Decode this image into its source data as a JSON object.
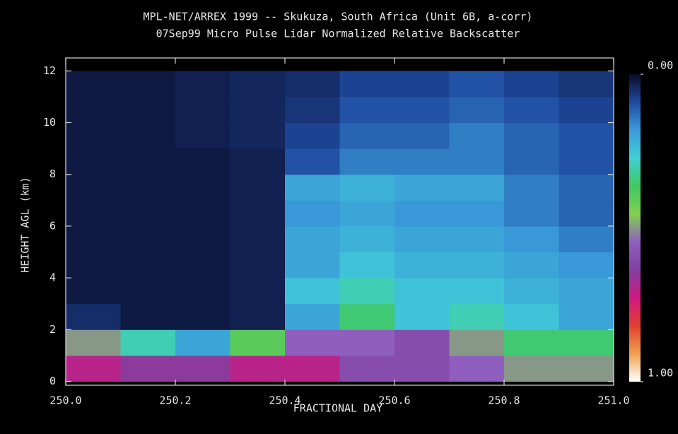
{
  "chart_data": {
    "type": "heatmap",
    "title": "MPL-NET/ARREX 1999 -- Skukuza, South Africa (Unit 6B, a-corr)",
    "subtitle": "07Sep99 Micro Pulse Lidar Normalized Relative Backscatter",
    "x_label": "FRACTIONAL DAY",
    "y_label": "HEIGHT AGL (km)",
    "xbins": [
      250.0,
      250.1,
      250.2,
      250.3,
      250.4,
      250.5,
      250.6,
      250.7,
      250.8,
      250.9,
      251.0
    ],
    "ybins": [
      0,
      1,
      2,
      3,
      4,
      5,
      6,
      7,
      8,
      9,
      10,
      11,
      12
    ],
    "values": [
      [
        0.7,
        0.65,
        0.65,
        0.7,
        0.7,
        0.6,
        0.6,
        0.55,
        0.5,
        0.5
      ],
      [
        0.5,
        0.3,
        0.2,
        0.4,
        0.55,
        0.55,
        0.6,
        0.5,
        0.35,
        0.35
      ],
      [
        0.05,
        0.02,
        0.02,
        0.03,
        0.2,
        0.35,
        0.25,
        0.3,
        0.25,
        0.2
      ],
      [
        0.02,
        0.02,
        0.02,
        0.03,
        0.25,
        0.3,
        0.25,
        0.25,
        0.22,
        0.2
      ],
      [
        0.02,
        0.02,
        0.02,
        0.03,
        0.2,
        0.25,
        0.22,
        0.22,
        0.2,
        0.18
      ],
      [
        0.02,
        0.02,
        0.02,
        0.03,
        0.2,
        0.22,
        0.2,
        0.2,
        0.18,
        0.15
      ],
      [
        0.02,
        0.02,
        0.02,
        0.03,
        0.18,
        0.2,
        0.18,
        0.18,
        0.15,
        0.12
      ],
      [
        0.02,
        0.02,
        0.02,
        0.03,
        0.2,
        0.22,
        0.2,
        0.2,
        0.15,
        0.12
      ],
      [
        0.02,
        0.02,
        0.02,
        0.03,
        0.1,
        0.15,
        0.15,
        0.15,
        0.12,
        0.1
      ],
      [
        0.02,
        0.02,
        0.03,
        0.04,
        0.08,
        0.12,
        0.12,
        0.15,
        0.12,
        0.1
      ],
      [
        0.02,
        0.02,
        0.03,
        0.04,
        0.06,
        0.1,
        0.1,
        0.12,
        0.1,
        0.08
      ],
      [
        0.02,
        0.02,
        0.03,
        0.04,
        0.05,
        0.08,
        0.08,
        0.1,
        0.08,
        0.06
      ]
    ],
    "xlim": [
      250.0,
      251.0
    ],
    "ylim": [
      -0.15,
      12.5
    ],
    "xticks": [
      {
        "value": 250.0,
        "label": "250.0"
      },
      250.2,
      250.4,
      250.6,
      250.8,
      {
        "value": 251.0,
        "label": "251.0"
      }
    ],
    "yticks": [
      0,
      2,
      4,
      6,
      8,
      10,
      12
    ],
    "colorbar_lim": [
      0,
      1
    ],
    "colorbar_ticks": [
      {
        "value": 0,
        "label": "0.00"
      },
      {
        "value": 1,
        "label": "1.00"
      }
    ],
    "colormap": [
      "#0a0c28",
      "#1e4aa0",
      "#3a9ad8",
      "#40d0d8",
      "#40c860",
      "#80d050",
      "#9060c0",
      "#8040a0",
      "#d01880",
      "#e04030",
      "#f0a050",
      "#ffffff"
    ]
  }
}
